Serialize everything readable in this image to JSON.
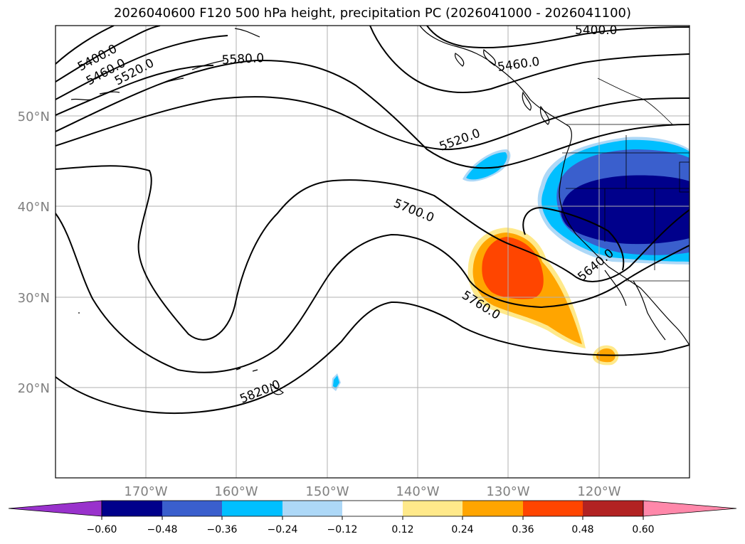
{
  "title": "2026040600 F120 500 hPa height, precipitation PC (2026041000 - 2026041100)",
  "lat_labels": [
    "50°N",
    "40°N",
    "30°N",
    "20°N"
  ],
  "lon_labels": [
    "170°W",
    "160°W",
    "150°W",
    "140°W",
    "130°W",
    "120°W"
  ],
  "contour_labels": [
    "5400.0",
    "5460.0",
    "5520.0",
    "5580.0",
    "5400.0",
    "5460.0",
    "5520.0",
    "5700.0",
    "5640.0",
    "5760.0",
    "5820.0"
  ],
  "colorbar": {
    "ticks": [
      "−0.60",
      "−0.48",
      "−0.36",
      "−0.24",
      "−0.12",
      "0.12",
      "0.24",
      "0.36",
      "0.48",
      "0.60"
    ],
    "colors": [
      "#9932cc",
      "#00008b",
      "#3a5fcd",
      "#00bfff",
      "#add8f7",
      "#ffffff",
      "#ffe98a",
      "#ffa500",
      "#ff4500",
      "#b22222",
      "#ff88aa"
    ]
  }
}
